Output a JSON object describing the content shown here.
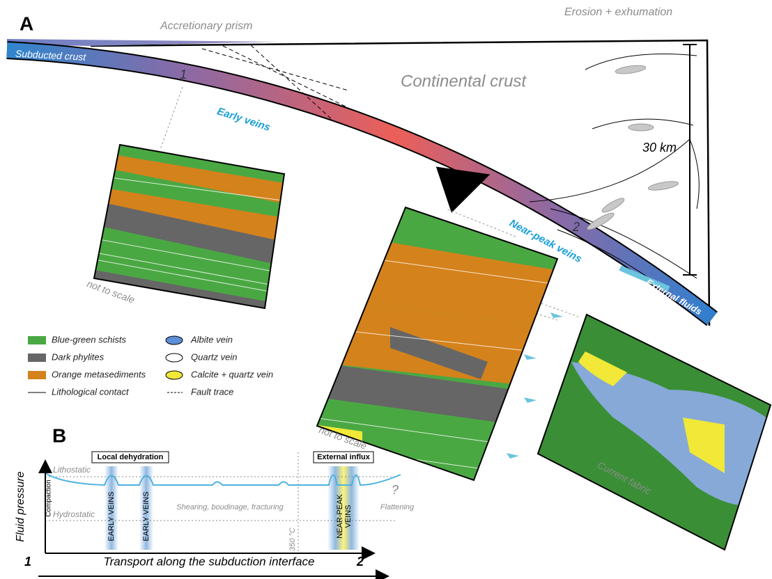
{
  "panel_a": {
    "label": "A",
    "accretionary_prism": "Accretionary prism",
    "erosion": "Erosion + exhumation",
    "subducted_crust": "Subducted crust",
    "continental_crust": "Continental crust",
    "loc1": "1",
    "early_veins": "Early veins",
    "scale": "30 km",
    "loc2": "2",
    "near_peak_veins": "Near-peak veins",
    "external_fluids": "External fluids",
    "not_to_scale_1": "not to scale",
    "not_to_scale_2": "not to scale",
    "current_fabric": "Current fabric"
  },
  "legend": [
    "Blue-green schists",
    "Dark phylites",
    "Orange metasediments",
    "Lithological contact",
    "Albite vein",
    "Quartz vein",
    "Calcite + quartz vein",
    "Fault trace"
  ],
  "panel_b": {
    "label": "B",
    "y_label": "Fluid pressure",
    "lithostatic": "Lithostatic",
    "hydrostatic": "Hydrostatic",
    "compaction": "Compaction",
    "local_dehydration": "Local dehydration",
    "external_influx": "External influx",
    "early_veins_1": "EARLY VEINS",
    "early_veins_2": "EARLY VEINS",
    "near_peak_1": "NEAR-PEAK",
    "near_peak_2": "VEINS",
    "shearing": "Shearing, boudinage, fracturing",
    "temperature": "350 °C",
    "flattening": "Flattening",
    "question": "?",
    "start": "1",
    "end": "2",
    "x_label": "Transport along the subduction interface"
  }
}
